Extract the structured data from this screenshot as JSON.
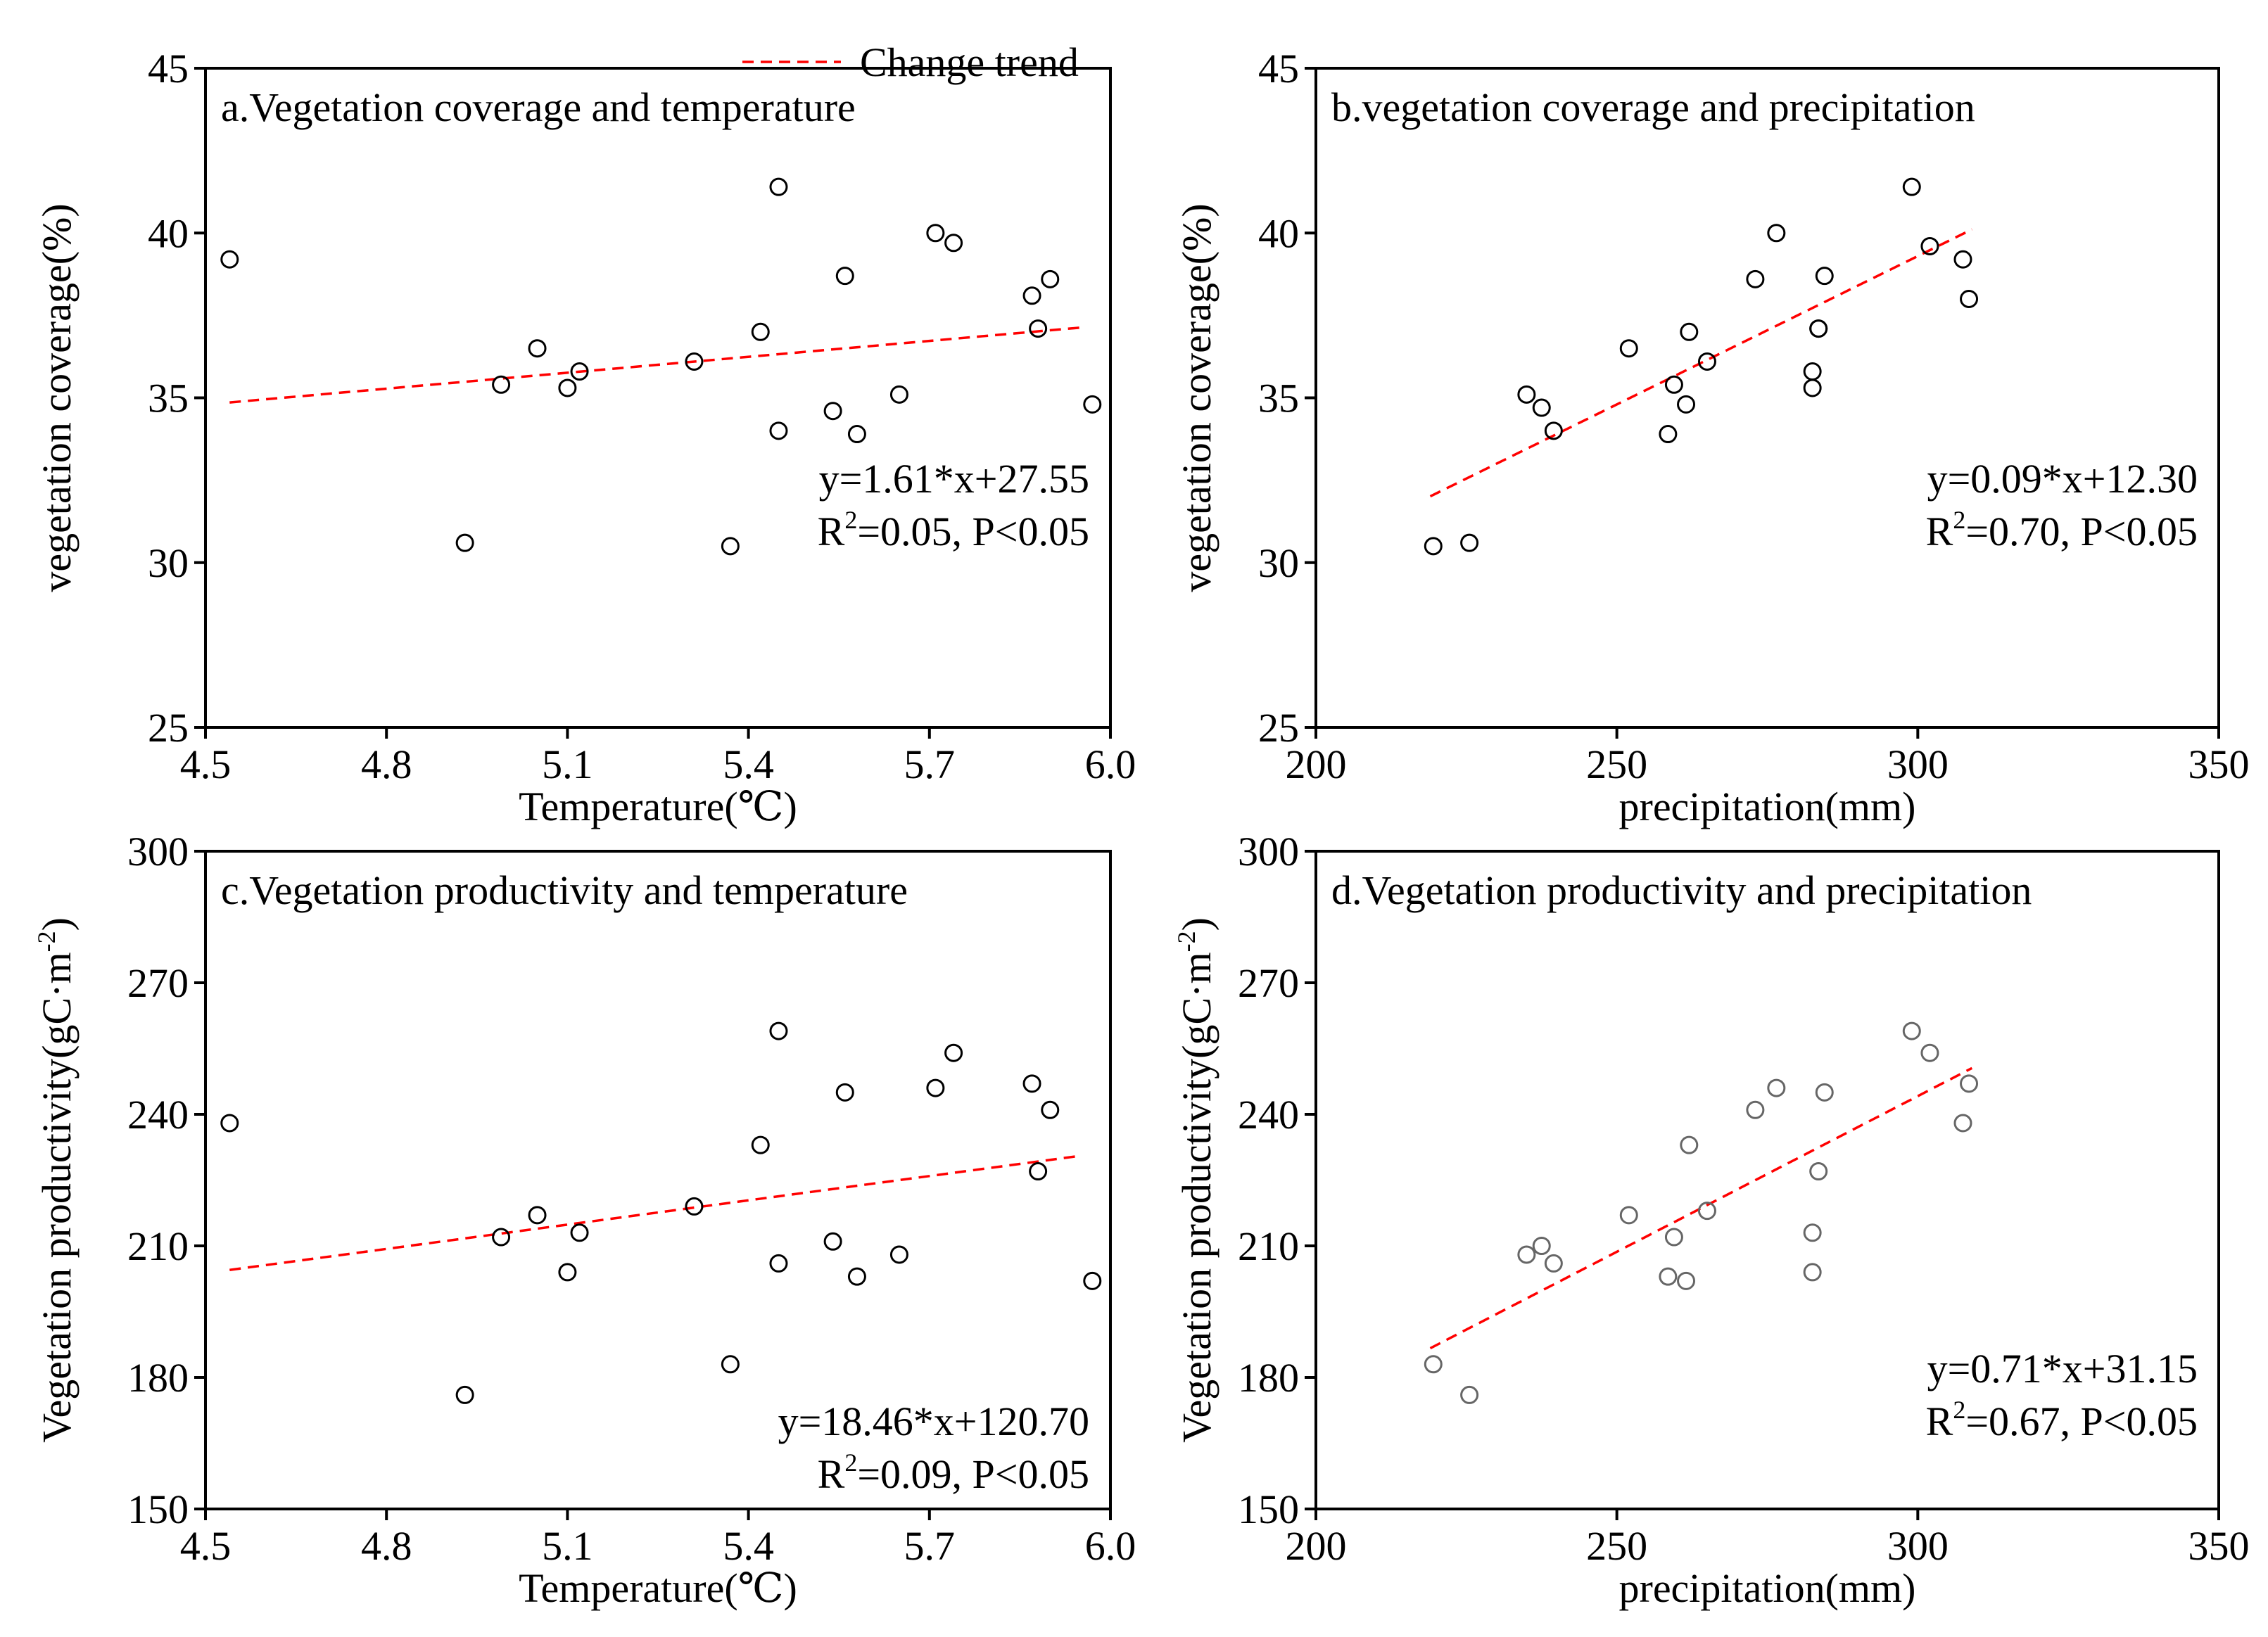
{
  "legend": {
    "label": "Change trend",
    "color": "#ff0000"
  },
  "chart_data": [
    {
      "id": "a",
      "type": "scatter",
      "title": "a.Vegetation coverage and temperature",
      "xlabel": "Temperature(℃)",
      "ylabel": "vegetation coverage(%)",
      "xlim": [
        4.5,
        6.0
      ],
      "ylim": [
        25,
        45
      ],
      "xticks": [
        "4.5",
        "4.8",
        "5.1",
        "5.4",
        "5.7",
        "6.0"
      ],
      "yticks": [
        "25",
        "30",
        "35",
        "40",
        "45"
      ],
      "x": [
        4.54,
        4.93,
        4.99,
        5.05,
        5.1,
        5.12,
        5.31,
        5.37,
        5.42,
        5.45,
        5.45,
        5.54,
        5.56,
        5.58,
        5.65,
        5.71,
        5.74,
        5.87,
        5.88,
        5.9,
        5.97
      ],
      "y": [
        39.2,
        30.6,
        35.4,
        36.5,
        35.3,
        35.8,
        36.1,
        30.5,
        37.0,
        41.4,
        34.0,
        34.6,
        38.7,
        33.9,
        35.1,
        40.0,
        39.7,
        38.1,
        37.1,
        38.6,
        34.8
      ],
      "trend": {
        "slope": 1.61,
        "intercept": 27.55,
        "x_range": [
          4.54,
          5.95
        ]
      },
      "equation": {
        "line1": "y=1.61*x+27.55",
        "r_prefix": "R",
        "r_sup": "2",
        "r_rest": "=0.05, P<0.05"
      },
      "marker_color": "#000000"
    },
    {
      "id": "b",
      "type": "scatter",
      "title": "b.vegetation coverage and precipitation",
      "xlabel": "precipitation(mm)",
      "ylabel": "vegetation coverage(%)",
      "xlim": [
        200,
        350
      ],
      "ylim": [
        25,
        45
      ],
      "xticks": [
        "200",
        "250",
        "300",
        "350"
      ],
      "yticks": [
        "25",
        "30",
        "35",
        "40",
        "45"
      ],
      "x": [
        219.5,
        225.5,
        235,
        237.5,
        239.5,
        252,
        258.5,
        259.5,
        261.5,
        262,
        265,
        273,
        276.5,
        282.5,
        282.5,
        283.5,
        283.5,
        284.5,
        299,
        302,
        307.5,
        308.5
      ],
      "y": [
        30.5,
        30.6,
        35.1,
        34.7,
        34.0,
        36.5,
        33.9,
        35.4,
        34.8,
        37.0,
        36.1,
        38.6,
        40.0,
        35.8,
        35.3,
        37.1,
        37.1,
        38.7,
        41.4,
        39.6,
        39.2,
        38.0
      ],
      "trend": {
        "slope": 0.09,
        "intercept": 12.3,
        "x_range": [
          219,
          309
        ]
      },
      "equation": {
        "line1": "y=0.09*x+12.30",
        "r_prefix": "R",
        "r_sup": "2",
        "r_rest": "=0.70, P<0.05"
      },
      "marker_color": "#000000"
    },
    {
      "id": "c",
      "type": "scatter",
      "title": "c.Vegetation productivity and temperature",
      "xlabel": "Temperature(℃)",
      "ylabel": "Vegetation productivity(gC·m",
      "ylabel_sup": "-2",
      "ylabel_close": ")",
      "xlim": [
        4.5,
        6.0
      ],
      "ylim": [
        150,
        300
      ],
      "xticks": [
        "4.5",
        "4.8",
        "5.1",
        "5.4",
        "5.7",
        "6.0"
      ],
      "yticks": [
        "150",
        "180",
        "210",
        "240",
        "270",
        "300"
      ],
      "x": [
        4.54,
        4.93,
        4.99,
        5.05,
        5.1,
        5.12,
        5.31,
        5.37,
        5.42,
        5.45,
        5.45,
        5.54,
        5.56,
        5.58,
        5.65,
        5.71,
        5.74,
        5.87,
        5.88,
        5.9,
        5.97
      ],
      "y": [
        238,
        176,
        212,
        217,
        204,
        213,
        219,
        183,
        233,
        259,
        206,
        211,
        245,
        203,
        208,
        246,
        254,
        247,
        227,
        241,
        202
      ],
      "trend": {
        "slope": 18.46,
        "intercept": 120.7,
        "x_range": [
          4.54,
          5.95
        ]
      },
      "equation": {
        "line1": "y=18.46*x+120.70",
        "r_prefix": "R",
        "r_sup": "2",
        "r_rest": "=0.09, P<0.05"
      },
      "marker_color": "#000000"
    },
    {
      "id": "d",
      "type": "scatter",
      "title": "d.Vegetation productivity and precipitation",
      "xlabel": "precipitation(mm)",
      "ylabel": "Vegetation productivity(gC·m",
      "ylabel_sup": "-2",
      "ylabel_close": ")",
      "xlim": [
        200,
        350
      ],
      "ylim": [
        150,
        300
      ],
      "xticks": [
        "200",
        "250",
        "300",
        "350"
      ],
      "yticks": [
        "150",
        "180",
        "210",
        "240",
        "270",
        "300"
      ],
      "x": [
        219.5,
        225.5,
        235,
        237.5,
        239.5,
        252,
        258.5,
        259.5,
        261.5,
        262,
        265,
        273,
        276.5,
        282.5,
        282.5,
        283.5,
        284.5,
        299,
        302,
        307.5,
        308.5
      ],
      "y": [
        183,
        176,
        208,
        210,
        206,
        217,
        203,
        212,
        202,
        233,
        218,
        241,
        246,
        213,
        204,
        227,
        245,
        259,
        254,
        238,
        247
      ],
      "trend": {
        "slope": 0.71,
        "intercept": 31.15,
        "x_range": [
          219,
          309
        ]
      },
      "equation": {
        "line1": "y=0.71*x+31.15",
        "r_prefix": "R",
        "r_sup": "2",
        "r_rest": "=0.67, P<0.05"
      },
      "marker_color": "#666666"
    }
  ]
}
